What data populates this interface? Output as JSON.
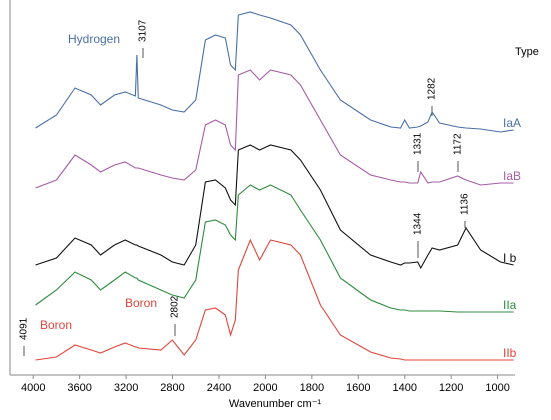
{
  "chart_data": {
    "type": "line",
    "x_label": "Wavenumber cm⁻¹",
    "legend_title": "Type",
    "annotations": [
      "Hydrogen",
      "3107",
      "1282",
      "1331",
      "1172",
      "1344",
      "1136",
      "Boron",
      "2802",
      "4091",
      "Boron"
    ],
    "xlim": [
      4200,
      925
    ],
    "xticks": [
      4000,
      3600,
      3200,
      2800,
      2400,
      2000,
      1800,
      1600,
      1400,
      1200,
      1000
    ],
    "ylim": [
      0,
      375
    ],
    "x": [
      3980,
      3800,
      3640,
      3500,
      3420,
      3300,
      3207,
      3120,
      3107,
      3095,
      2900,
      2802,
      2700,
      2600,
      2517,
      2430,
      2345,
      2300,
      2259,
      2233,
      2130,
      2050,
      1978,
      1890,
      1849,
      1763,
      1677,
      1547,
      1460,
      1418,
      1400,
      1380,
      1344,
      1331,
      1300,
      1282,
      1250,
      1172,
      1136,
      1073,
      987,
      931
    ],
    "series": [
      {
        "name": "IaA",
        "color": "#4a6fa5",
        "values": [
          247,
          260,
          287,
          280,
          270,
          280,
          283,
          279,
          320,
          277,
          270,
          265,
          263,
          275,
          335,
          340,
          337,
          310,
          305,
          360,
          363,
          360,
          357,
          350,
          340,
          305,
          275,
          255,
          248,
          247,
          255,
          247,
          248,
          249,
          253,
          263,
          252,
          248,
          247,
          246,
          243,
          245
        ]
      },
      {
        "name": "IaB",
        "color": "#a65ca6",
        "values": [
          187,
          195,
          220,
          210,
          203,
          210,
          213,
          207,
          207,
          207,
          200,
          197,
          195,
          205,
          250,
          255,
          250,
          230,
          225,
          300,
          305,
          295,
          305,
          300,
          290,
          255,
          220,
          200,
          195,
          193,
          193,
          192,
          192,
          203,
          192,
          193,
          193,
          199,
          195,
          190,
          192,
          192
        ]
      },
      {
        "name": "I b",
        "color": "#111111",
        "values": [
          110,
          117,
          137,
          130,
          120,
          130,
          135,
          130,
          130,
          129,
          120,
          113,
          110,
          130,
          193,
          195,
          187,
          175,
          170,
          225,
          230,
          225,
          230,
          225,
          215,
          185,
          145,
          120,
          113,
          110,
          112,
          112,
          113,
          107,
          120,
          127,
          125,
          130,
          147,
          125,
          113,
          110
        ]
      },
      {
        "name": "IIa",
        "color": "#2e8b3e",
        "values": [
          70,
          85,
          103,
          95,
          85,
          95,
          103,
          97,
          97,
          95,
          85,
          80,
          77,
          95,
          153,
          155,
          150,
          140,
          135,
          180,
          190,
          185,
          190,
          180,
          165,
          135,
          97,
          75,
          67,
          65,
          65,
          64,
          64,
          64,
          64,
          64,
          64,
          63,
          63,
          63,
          63,
          63
        ]
      },
      {
        "name": "IIb",
        "color": "#e0443a",
        "values": [
          15,
          18,
          30,
          25,
          22,
          28,
          32,
          28,
          28,
          27,
          25,
          35,
          20,
          35,
          65,
          67,
          60,
          40,
          55,
          105,
          135,
          115,
          135,
          130,
          120,
          70,
          40,
          23,
          17,
          16,
          15,
          15,
          15,
          15,
          15,
          15,
          15,
          15,
          15,
          15,
          15,
          15
        ]
      }
    ]
  }
}
